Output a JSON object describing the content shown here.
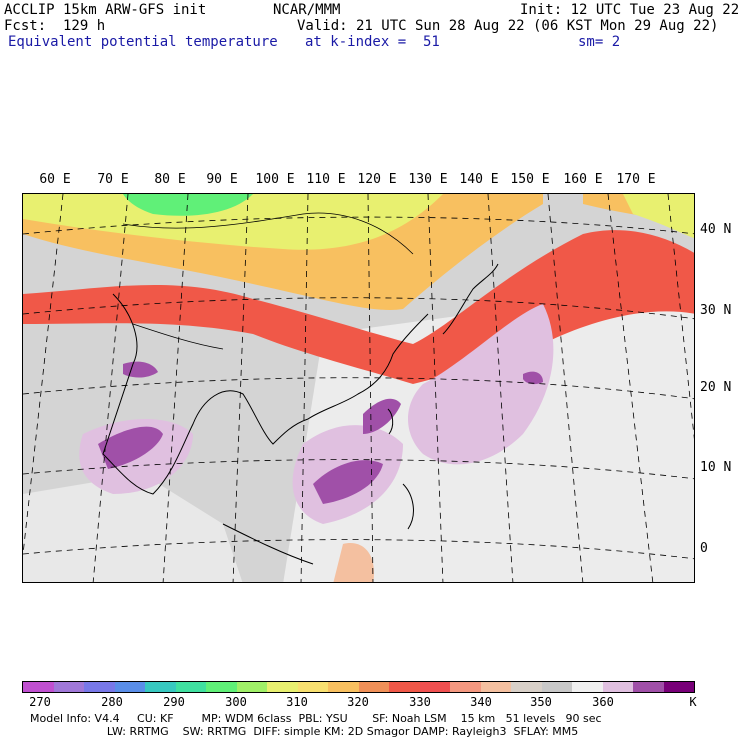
{
  "header": {
    "line1_left": "ACCLIP 15km ARW-GFS init",
    "line1_center": "NCAR/MMM",
    "line1_right": "Init: 12 UTC Tue 23 Aug 22",
    "line2_left": "Fcst:  129 h",
    "line2_right": "Valid: 21 UTC Sun 28 Aug 22 (06 KST Mon 29 Aug 22)",
    "line3_left": "Equivalent potential temperature",
    "line3_center": "at k-index =  51",
    "line3_right": "sm= 2"
  },
  "lon_labels": [
    "60 E",
    "70 E",
    "80 E",
    "90 E",
    "100 E",
    "110 E",
    "120 E",
    "130 E",
    "140 E",
    "150 E",
    "160 E",
    "170 E"
  ],
  "lat_labels": [
    "40 N",
    "30 N",
    "20 N",
    "10 N",
    "0"
  ],
  "colorbar": {
    "colors": [
      "#c050d0",
      "#a078d8",
      "#7878e8",
      "#5a8ee8",
      "#38c8c0",
      "#40e0a0",
      "#60f078",
      "#a0f068",
      "#e8f070",
      "#f8e070",
      "#f8c060",
      "#f09058",
      "#f05848",
      "#f05050",
      "#f49880",
      "#f4c0a0",
      "#d8d0c8",
      "#c8c8c8",
      "#f0f0f0",
      "#e0c0e0",
      "#a050a8",
      "#780078"
    ],
    "ticks": [
      "270",
      "280",
      "290",
      "300",
      "310",
      "320",
      "330",
      "340",
      "350",
      "360"
    ],
    "unit": "K"
  },
  "footer": {
    "line1": "Model Info: V4.4     CU: KF        MP: WDM 6class  PBL: YSU       SF: Noah LSM    15 km   51 levels   90 sec",
    "line2": "                      LW: RRTMG    SW: RRTMG  DIFF: simple KM: 2D Smagor DAMP: Rayleigh3  SFLAY: MM5"
  }
}
